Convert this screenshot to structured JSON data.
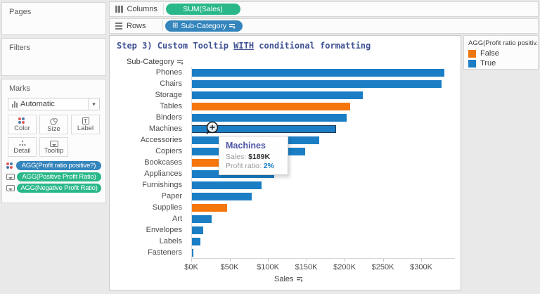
{
  "left_panel": {
    "pages_label": "Pages",
    "filters_label": "Filters",
    "marks": {
      "label": "Marks",
      "mark_type": "Automatic",
      "dropdown_caret": "▾",
      "buttons": [
        {
          "id": "color",
          "label": "Color"
        },
        {
          "id": "size",
          "label": "Size"
        },
        {
          "id": "label",
          "label": "Label",
          "glyph": "T"
        },
        {
          "id": "detail",
          "label": "Detail"
        },
        {
          "id": "tooltip",
          "label": "Tooltip"
        }
      ],
      "pills": [
        {
          "label": "AGG(Profit ratio positive?)",
          "color": "blue",
          "icon": "color-icon"
        },
        {
          "label": "AGG(Positive Profit Ratio)",
          "color": "green",
          "icon": "tooltip-icon"
        },
        {
          "label": "AGG(Negative Profit Ratio)",
          "color": "green",
          "icon": "tooltip-icon"
        }
      ]
    }
  },
  "shelves": {
    "columns_label": "Columns",
    "rows_label": "Rows",
    "columns_pill": "SUM(Sales)",
    "rows_pill": "Sub-Category",
    "rows_pill_expand_glyph": "⊞"
  },
  "chart": {
    "title_prefix": "Step 3) Custom Tooltip ",
    "title_underlined": "WITH",
    "title_suffix": " conditional formatting",
    "row_header": "Sub-Category",
    "axis_title": "Sales"
  },
  "chart_data": {
    "type": "bar",
    "orientation": "horizontal",
    "title": "Step 3) Custom Tooltip WITH conditional formatting",
    "categories": [
      "Phones",
      "Chairs",
      "Storage",
      "Tables",
      "Binders",
      "Machines",
      "Accessories",
      "Copiers",
      "Bookcases",
      "Appliances",
      "Furnishings",
      "Paper",
      "Supplies",
      "Art",
      "Envelopes",
      "Labels",
      "Fasteners"
    ],
    "values_k": [
      330,
      327,
      224,
      207,
      203,
      189,
      167,
      149,
      115,
      108,
      92,
      79,
      47,
      27,
      16,
      12,
      3
    ],
    "profit_ratio_positive": [
      true,
      true,
      true,
      false,
      true,
      true,
      true,
      true,
      false,
      true,
      true,
      true,
      false,
      true,
      true,
      true,
      true
    ],
    "color_true": "#1b7ec5",
    "color_false": "#f4760c",
    "highlighted_category": "Machines",
    "x_ticks": [
      "$0K",
      "$50K",
      "$100K",
      "$150K",
      "$200K",
      "$250K",
      "$300K"
    ],
    "x_tick_values": [
      0,
      50,
      100,
      150,
      200,
      250,
      300
    ],
    "xlabel": "Sales",
    "xlim_k": [
      0,
      344
    ],
    "grid": false,
    "legend_position": "top-right"
  },
  "tooltip": {
    "title": "Machines",
    "rows": [
      {
        "label": "Sales: ",
        "value": "$189K",
        "value_style": "dark"
      },
      {
        "label": "Profit ratio: ",
        "value": "2%",
        "value_style": "blue"
      }
    ]
  },
  "legend": {
    "title": "AGG(Profit ratio positiv...",
    "items": [
      {
        "label": "False",
        "color": "#f0760f"
      },
      {
        "label": "True",
        "color": "#1d7ec6"
      }
    ]
  }
}
